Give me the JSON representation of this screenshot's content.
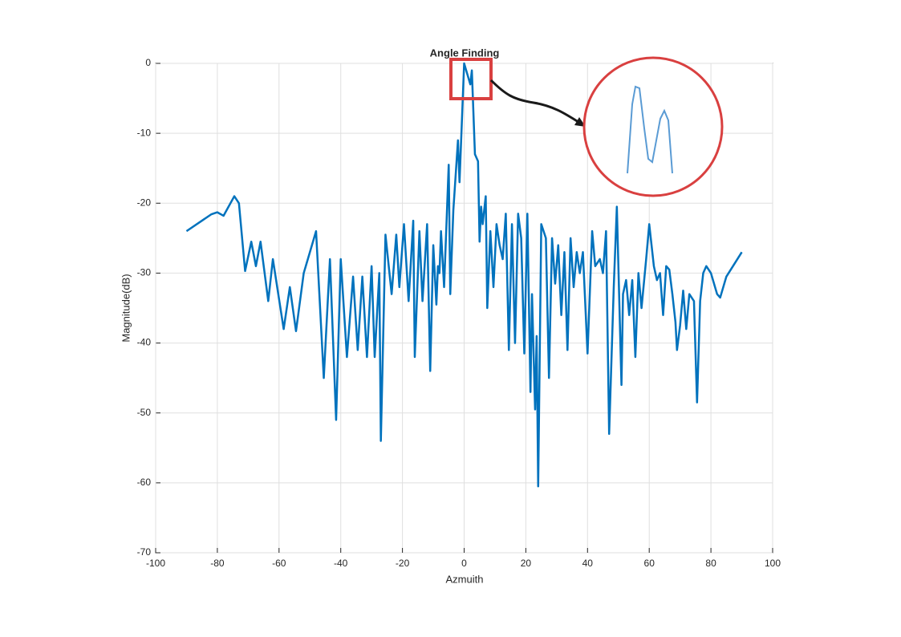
{
  "chart_data": {
    "type": "line",
    "title": "Angle Finding",
    "x_label": "Azmuith",
    "y_label": "Magnitude(dB)",
    "x": [
      -90,
      -82,
      -80,
      -78,
      -74.5,
      -73,
      -71,
      -69,
      -67.5,
      -66,
      -63.5,
      -62,
      -58.5,
      -56.5,
      -54.5,
      -52,
      -48,
      -45.5,
      -43.5,
      -41.5,
      -40,
      -38,
      -36,
      -34.5,
      -33,
      -31.5,
      -30,
      -29,
      -27.5,
      -27,
      -25.5,
      -23.5,
      -22,
      -21,
      -19.5,
      -18,
      -16.5,
      -16,
      -14.5,
      -13.5,
      -12,
      -11,
      -10,
      -9,
      -8.5,
      -8,
      -7.5,
      -6.5,
      -5,
      -4.5,
      -3.5,
      -2,
      -1.5,
      0,
      1,
      2,
      2.5,
      3.5,
      4.5,
      5,
      5.5,
      6,
      7,
      7.5,
      8.5,
      9.5,
      10.5,
      11.5,
      12.5,
      13.5,
      14.5,
      15.5,
      16.5,
      17.5,
      18.5,
      19.5,
      20.5,
      21.5,
      22,
      23,
      23.5,
      24,
      25,
      26.5,
      27.5,
      28.5,
      29.5,
      30.5,
      31.5,
      32.5,
      33.5,
      34.5,
      35.5,
      36.5,
      37.5,
      38.5,
      40,
      41.5,
      42.5,
      44,
      45,
      46,
      47,
      48.5,
      49.5,
      51,
      51.5,
      52.5,
      53.5,
      54.5,
      55.5,
      56.5,
      57.5,
      59,
      60,
      61.5,
      62.5,
      63.5,
      64.5,
      65.5,
      66.5,
      67.5,
      68.5,
      69,
      70,
      71,
      72,
      73,
      74.5,
      75.5,
      76.5,
      77.5,
      78.5,
      80,
      82,
      83,
      85,
      90
    ],
    "series": [
      {
        "color": "#0072bd",
        "values": [
          -24,
          -21.6,
          -21.3,
          -21.8,
          -19,
          -20,
          -29.7,
          -25.5,
          -29,
          -25.5,
          -34,
          -28,
          -38,
          -32,
          -38.3,
          -30,
          -24,
          -45,
          -28,
          -51,
          -28,
          -42,
          -30.5,
          -41,
          -30.5,
          -42,
          -29,
          -42,
          -30,
          -54,
          -24.5,
          -33,
          -24.5,
          -32,
          -23,
          -34,
          -22.5,
          -42,
          -24,
          -34,
          -23,
          -44,
          -26,
          -34.5,
          -29,
          -30,
          -24,
          -32,
          -14.5,
          -33,
          -21,
          -11,
          -17,
          0,
          -1.5,
          -3,
          -1,
          -13,
          -14,
          -25.5,
          -20.5,
          -23,
          -19,
          -35,
          -24,
          -32,
          -23,
          -26,
          -28,
          -21.5,
          -41,
          -23,
          -40,
          -21.5,
          -25,
          -41.5,
          -21.5,
          -47,
          -33,
          -49.5,
          -39,
          -60.5,
          -23,
          -25,
          -45,
          -25,
          -31.5,
          -26,
          -36,
          -27,
          -41,
          -25,
          -32,
          -27,
          -30,
          -27,
          -41.5,
          -24,
          -29,
          -28,
          -30,
          -24,
          -53,
          -32,
          -20.5,
          -46,
          -33,
          -31,
          -36,
          -31,
          -42,
          -30,
          -35,
          -28,
          -23,
          -29,
          -31,
          -30,
          -36,
          -29,
          -29.5,
          -33,
          -37,
          -41,
          -37.5,
          -32.5,
          -38,
          -33,
          -34,
          -48.5,
          -34,
          -30,
          -29,
          -30,
          -33,
          -33.5,
          -30.5,
          -27
        ]
      }
    ],
    "xlim": [
      -100,
      100
    ],
    "xticks": [
      -100,
      -80,
      -60,
      -40,
      -20,
      0,
      20,
      40,
      60,
      80,
      100
    ],
    "ylim": [
      -70,
      0
    ],
    "yticks": [
      -70,
      -60,
      -50,
      -40,
      -30,
      -20,
      -10,
      0
    ],
    "grid": true
  }
}
